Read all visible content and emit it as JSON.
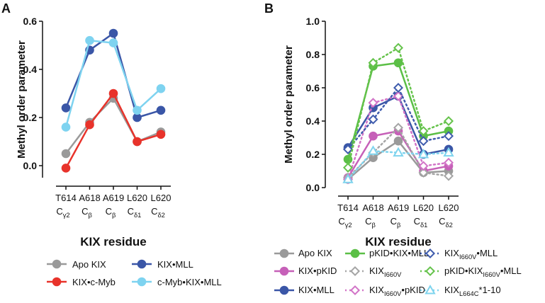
{
  "figure": {
    "panels": [
      "A",
      "B"
    ]
  },
  "chart_data": [
    {
      "panel": "A",
      "type": "line",
      "ylabel": "Methyl order parameter",
      "xlabel": "KIX residue",
      "ylim": [
        -0.05,
        0.6
      ],
      "yticks": [
        "0.0",
        "0.2",
        "0.4",
        "0.6"
      ],
      "ytick_values": [
        0,
        0.2,
        0.4,
        0.6
      ],
      "categories": [
        {
          "res": "T614",
          "atom": "C",
          "sub": "γ2"
        },
        {
          "res": "A618",
          "atom": "C",
          "sub": "β"
        },
        {
          "res": "A619",
          "atom": "C",
          "sub": "β"
        },
        {
          "res": "L620",
          "atom": "C",
          "sub": "δ1"
        },
        {
          "res": "L620",
          "atom": "C",
          "sub": "δ2"
        }
      ],
      "series": [
        {
          "name": "Apo KIX",
          "label": "Apo KIX",
          "color": "#9a9a9a",
          "marker": "circle-filled",
          "dash": "solid",
          "values": [
            0.05,
            0.18,
            0.28,
            0.1,
            0.14
          ]
        },
        {
          "name": "KIX•c-Myb",
          "label": "KIX•c-Myb",
          "color": "#e8332b",
          "marker": "circle-filled",
          "dash": "solid",
          "values": [
            -0.01,
            0.17,
            0.3,
            0.1,
            0.13
          ]
        },
        {
          "name": "KIX•MLL",
          "label": "KIX•MLL",
          "color": "#3a56a7",
          "marker": "circle-filled",
          "dash": "solid",
          "values": [
            0.24,
            0.48,
            0.55,
            0.2,
            0.23
          ]
        },
        {
          "name": "c-Myb•KIX•MLL",
          "label": "c-Myb•KIX•MLL",
          "color": "#7ed3f0",
          "marker": "circle-filled",
          "dash": "solid",
          "values": [
            0.16,
            0.52,
            0.51,
            0.23,
            0.32
          ]
        }
      ]
    },
    {
      "panel": "B",
      "type": "line",
      "ylabel": "Methyl order parameter",
      "xlabel": "KIX residue",
      "ylim": [
        0,
        1.0
      ],
      "yticks": [
        "0.0",
        "0.2",
        "0.4",
        "0.6",
        "0.8",
        "1.0"
      ],
      "ytick_values": [
        0,
        0.2,
        0.4,
        0.6,
        0.8,
        1.0
      ],
      "categories": [
        {
          "res": "T614",
          "atom": "C",
          "sub": "γ2"
        },
        {
          "res": "A618",
          "atom": "C",
          "sub": "β"
        },
        {
          "res": "A619",
          "atom": "C",
          "sub": "β"
        },
        {
          "res": "L620",
          "atom": "C",
          "sub": "δ1"
        },
        {
          "res": "L620",
          "atom": "C",
          "sub": "δ2"
        }
      ],
      "series": [
        {
          "name": "Apo KIX",
          "label": "Apo KIX",
          "color": "#9a9a9a",
          "marker": "circle-filled",
          "dash": "solid",
          "values": [
            0.05,
            0.18,
            0.28,
            0.09,
            0.1
          ]
        },
        {
          "name": "KIX•pKID",
          "label": "KIX•pKID",
          "color": "#c660b8",
          "marker": "circle-filled",
          "dash": "solid",
          "values": [
            0.06,
            0.31,
            0.34,
            0.1,
            0.13
          ]
        },
        {
          "name": "KIX•MLL",
          "label": "KIX•MLL",
          "color": "#3a56a7",
          "marker": "circle-filled",
          "dash": "solid",
          "values": [
            0.24,
            0.48,
            0.55,
            0.2,
            0.23
          ]
        },
        {
          "name": "pKID•KIX•MLL",
          "label": "pKID•KIX•MLL",
          "color": "#5bbf46",
          "marker": "circle-filled",
          "dash": "solid",
          "values": [
            0.17,
            0.73,
            0.75,
            0.31,
            0.34
          ]
        },
        {
          "name": "KIX I660V",
          "label": "KIX",
          "label_sub": "I660V",
          "label_suffix": "",
          "color": "#a5a5a5",
          "marker": "diamond-open",
          "dash": "dot",
          "values": [
            0.06,
            0.21,
            0.36,
            0.09,
            0.07
          ]
        },
        {
          "name": "KIX I660V•pKID",
          "label": "KIX",
          "label_sub": "I660V",
          "label_suffix": "•pKID",
          "color": "#d274c7",
          "marker": "diamond-open",
          "dash": "dot",
          "values": [
            0.05,
            0.51,
            0.55,
            0.13,
            0.15
          ]
        },
        {
          "name": "KIX I660V•MLL",
          "label": "KIX",
          "label_sub": "I660V",
          "label_suffix": "•MLL",
          "color": "#3f5cad",
          "marker": "diamond-open",
          "dash": "dot",
          "values": [
            0.23,
            0.41,
            0.6,
            0.28,
            0.31
          ]
        },
        {
          "name": "pKID•KIX I660V•MLL",
          "label": "pKID•KIX",
          "label_sub": "I660V",
          "label_suffix": "•MLL",
          "color": "#66c34c",
          "marker": "diamond-open",
          "dash": "dot",
          "values": [
            0.12,
            0.75,
            0.84,
            0.34,
            0.4
          ]
        },
        {
          "name": "KIX L664C*1-10",
          "label": "KIX",
          "label_sub": "L664C",
          "label_suffix": "*1-10",
          "color": "#7fd4ee",
          "marker": "triangle-open",
          "dash": "dot",
          "values": [
            0.05,
            0.22,
            0.21,
            0.2,
            0.21
          ]
        }
      ]
    }
  ]
}
